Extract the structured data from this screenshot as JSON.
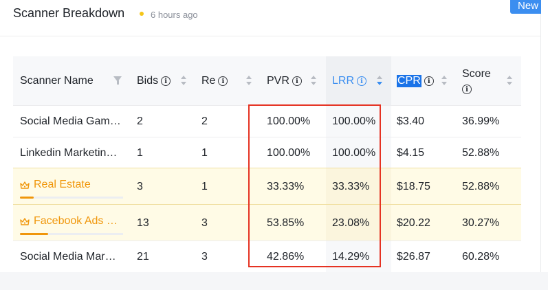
{
  "header": {
    "title": "Scanner Breakdown",
    "timestamp": "6 hours ago",
    "new_badge": "New"
  },
  "columns": {
    "scanner_name": "Scanner Name",
    "bids": "Bids",
    "re": "Re",
    "pvr": "PVR",
    "lrr": "LRR",
    "cpr": "CPR",
    "score": "Score"
  },
  "rows": [
    {
      "name": "Social Media Gam…",
      "bids": "2",
      "re": "2",
      "pvr": "100.00%",
      "lrr": "100.00%",
      "cpr": "$3.40",
      "score": "36.99%",
      "highlighted": false
    },
    {
      "name": "Linkedin Marketin…",
      "bids": "1",
      "re": "1",
      "pvr": "100.00%",
      "lrr": "100.00%",
      "cpr": "$4.15",
      "score": "52.88%",
      "highlighted": false
    },
    {
      "name": "Real Estate",
      "bids": "3",
      "re": "1",
      "pvr": "33.33%",
      "lrr": "33.33%",
      "cpr": "$18.75",
      "score": "52.88%",
      "highlighted": true,
      "progress": 0.13
    },
    {
      "name": "Facebook Ads …",
      "bids": "13",
      "re": "3",
      "pvr": "53.85%",
      "lrr": "23.08%",
      "cpr": "$20.22",
      "score": "30.27%",
      "highlighted": true,
      "progress": 0.27
    },
    {
      "name": "Social Media Mar…",
      "bids": "21",
      "re": "3",
      "pvr": "42.86%",
      "lrr": "14.29%",
      "cpr": "$26.87",
      "score": "60.28%",
      "highlighted": false
    }
  ],
  "colors": {
    "accent": "#3b8ef0",
    "highlight_text": "#f0960a",
    "highlight_row": "#fffbe6",
    "annotation_box": "#e53222"
  }
}
